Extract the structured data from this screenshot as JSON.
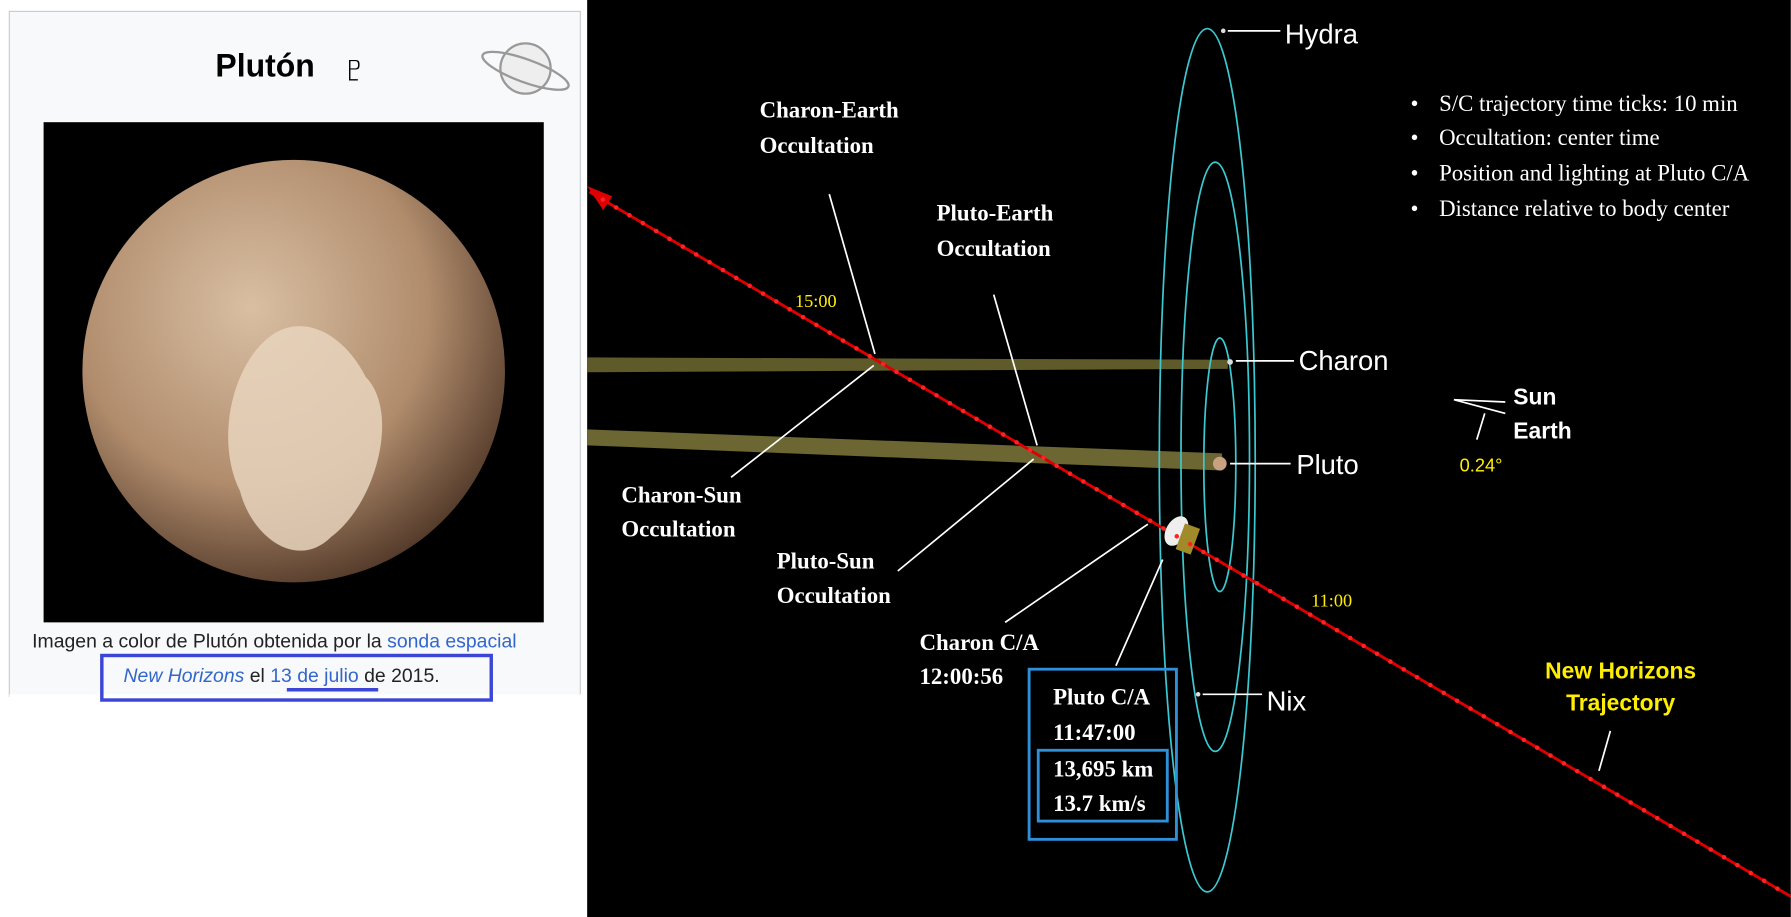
{
  "infobox": {
    "title": "Plutón",
    "symbol": "♇",
    "caption": {
      "text1": "Imagen a color de Plutón obtenida por la ",
      "link1": "sonda espacial",
      "link2": "New Horizons",
      "text2": " el ",
      "link3": "13 de julio",
      "text3": " de 2015."
    }
  },
  "diagram": {
    "bodies": [
      "Hydra",
      "Charon",
      "Pluto",
      "Nix"
    ],
    "occultations": {
      "charon_earth": [
        "Charon-Earth",
        "Occultation"
      ],
      "pluto_earth": [
        "Pluto-Earth",
        "Occultation"
      ],
      "charon_sun": [
        "Charon-Sun",
        "Occultation"
      ],
      "pluto_sun": [
        "Pluto-Sun",
        "Occultation"
      ]
    },
    "charon_ca": [
      "Charon C/A",
      "12:00:56"
    ],
    "pluto_ca": [
      "Pluto C/A",
      "11:47:00",
      "13,695 km",
      "13.7   km/s"
    ],
    "time_ticks": [
      "15:00",
      "11:00"
    ],
    "notes": [
      "S/C trajectory time ticks: 10 min",
      "Occultation: center time",
      "Position and lighting at Pluto C/A",
      "Distance relative to body center"
    ],
    "directions": [
      "Sun",
      "Earth",
      "0.24°"
    ],
    "trajectory": [
      "New Horizons",
      "Trajectory"
    ]
  }
}
